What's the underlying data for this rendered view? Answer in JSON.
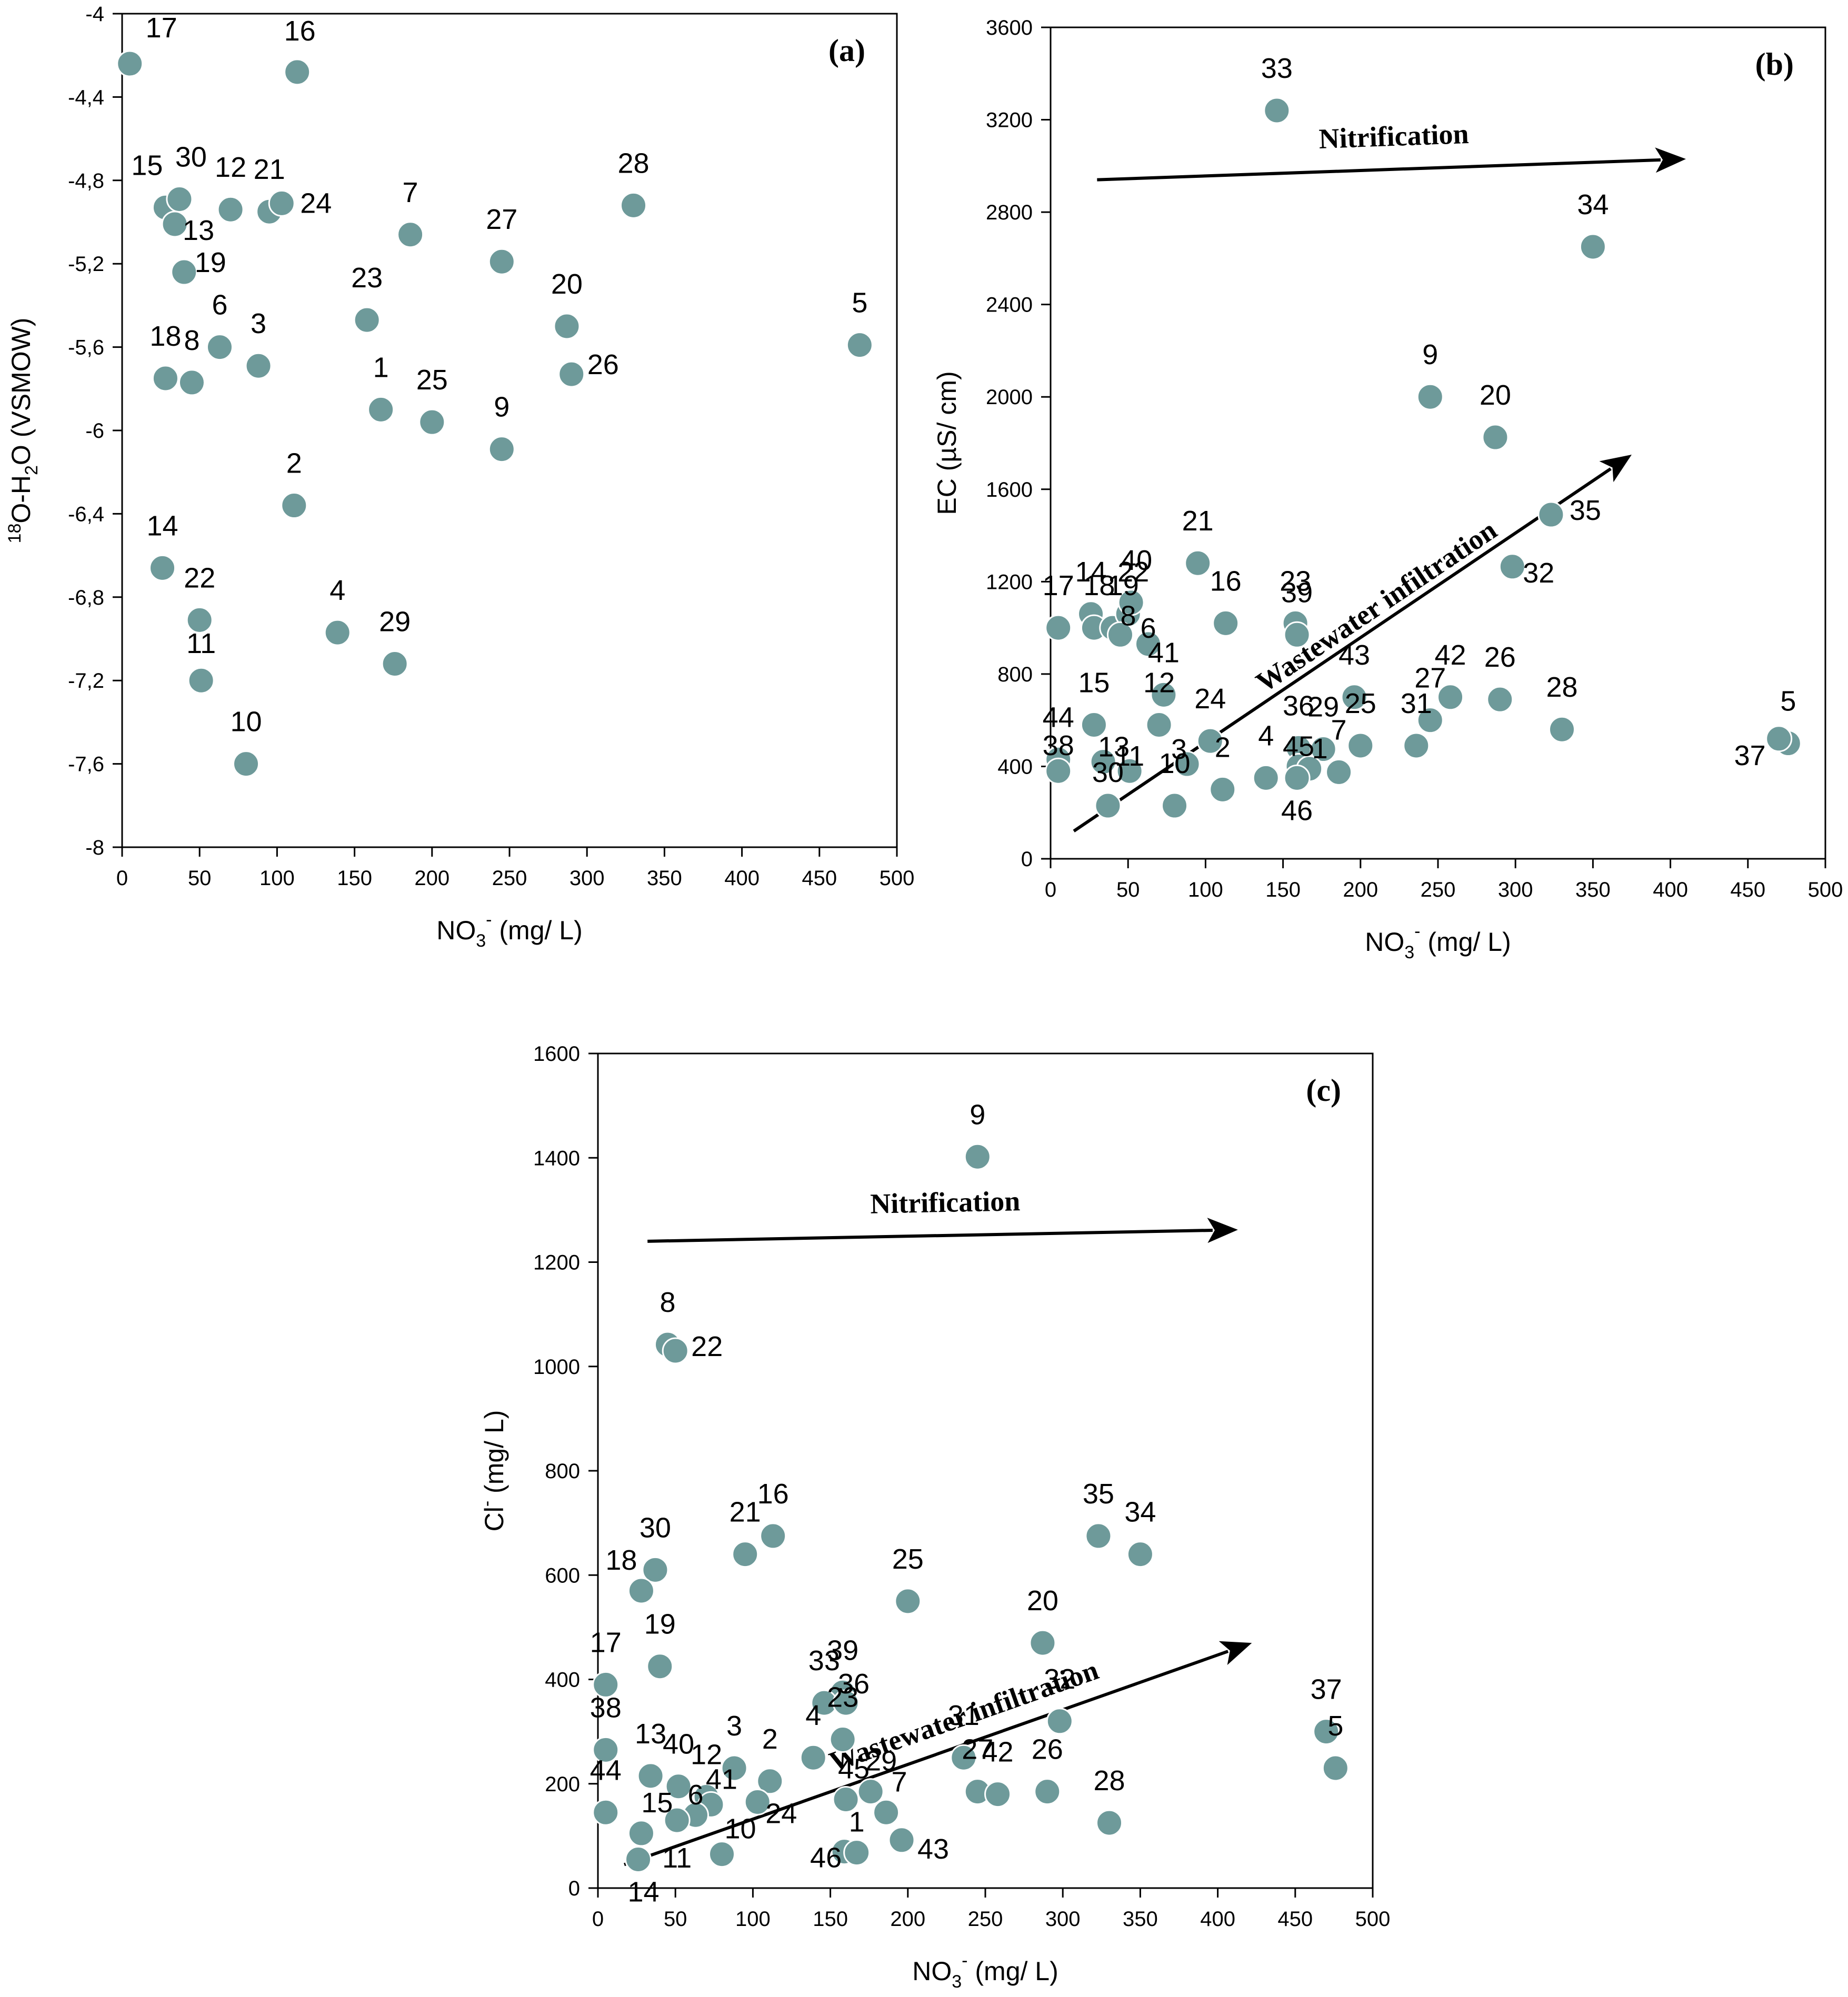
{
  "colors": {
    "point": "#6e9a9a",
    "axis": "#000000",
    "background": "#ffffff"
  },
  "chart_data": [
    {
      "id": "a",
      "type": "scatter",
      "panel_label": "(a)",
      "xlabel": "NO3- (mg/ L)",
      "xlabel_parts": {
        "main": "NO",
        "sub": "3",
        "sup": "-",
        "rest": " (mg/ L)"
      },
      "ylabel": "18O-H2O (VSMOW)",
      "ylabel_parts": {
        "sup": "18",
        "main": "O-H",
        "sub": "2",
        "rest": "O (VSMOW)"
      },
      "xlim": [
        0,
        500
      ],
      "ylim": [
        -8,
        -4
      ],
      "xticks": [
        0,
        50,
        100,
        150,
        200,
        250,
        300,
        350,
        400,
        450,
        500
      ],
      "xtick_labels": [
        "0",
        "50",
        "100",
        "150",
        "200",
        "250",
        "300",
        "350",
        "400",
        "450",
        "500"
      ],
      "yticks": [
        -8,
        -7.6,
        -7.2,
        -6.8,
        -6.4,
        -6,
        -5.6,
        -5.2,
        -4.8,
        -4.4,
        -4
      ],
      "ytick_labels": [
        "-8",
        "-7,6",
        "-7,2",
        "-6,8",
        "-6,4",
        "-6",
        "-5,6",
        "-5,2",
        "-4,8",
        "-4,4",
        "-4"
      ],
      "points": [
        {
          "label": "17",
          "x": 5,
          "y": -4.24
        },
        {
          "label": "16",
          "x": 113,
          "y": -4.28
        },
        {
          "label": "15",
          "x": 28,
          "y": -4.93
        },
        {
          "label": "30",
          "x": 37,
          "y": -4.89
        },
        {
          "label": "13",
          "x": 34,
          "y": -5.01
        },
        {
          "label": "12",
          "x": 70,
          "y": -4.94
        },
        {
          "label": "21",
          "x": 95,
          "y": -4.95
        },
        {
          "label": "24",
          "x": 103,
          "y": -4.91
        },
        {
          "label": "28",
          "x": 330,
          "y": -4.92
        },
        {
          "label": "7",
          "x": 186,
          "y": -5.06
        },
        {
          "label": "27",
          "x": 245,
          "y": -5.19
        },
        {
          "label": "19",
          "x": 40,
          "y": -5.24
        },
        {
          "label": "23",
          "x": 158,
          "y": -5.47
        },
        {
          "label": "20",
          "x": 287,
          "y": -5.5
        },
        {
          "label": "6",
          "x": 63,
          "y": -5.6
        },
        {
          "label": "3",
          "x": 88,
          "y": -5.69
        },
        {
          "label": "26",
          "x": 290,
          "y": -5.73
        },
        {
          "label": "18",
          "x": 28,
          "y": -5.75
        },
        {
          "label": "8",
          "x": 45,
          "y": -5.77
        },
        {
          "label": "5",
          "x": 476,
          "y": -5.59
        },
        {
          "label": "1",
          "x": 167,
          "y": -5.9
        },
        {
          "label": "25",
          "x": 200,
          "y": -5.96
        },
        {
          "label": "9",
          "x": 245,
          "y": -6.09
        },
        {
          "label": "2",
          "x": 111,
          "y": -6.36
        },
        {
          "label": "14",
          "x": 26,
          "y": -6.66
        },
        {
          "label": "22",
          "x": 50,
          "y": -6.91
        },
        {
          "label": "4",
          "x": 139,
          "y": -6.97
        },
        {
          "label": "29",
          "x": 176,
          "y": -7.12
        },
        {
          "label": "11",
          "x": 51,
          "y": -7.2
        },
        {
          "label": "10",
          "x": 80,
          "y": -7.6
        }
      ]
    },
    {
      "id": "b",
      "type": "scatter",
      "panel_label": "(b)",
      "xlabel": "NO3- (mg/ L)",
      "xlabel_parts": {
        "main": "NO",
        "sub": "3",
        "sup": "-",
        "rest": " (mg/ L)"
      },
      "ylabel": "EC (µS/ cm)",
      "xlim": [
        0,
        500
      ],
      "ylim": [
        0,
        3600
      ],
      "xticks": [
        0,
        50,
        100,
        150,
        200,
        250,
        300,
        350,
        400,
        450,
        500
      ],
      "xtick_labels": [
        "0",
        "50",
        "100",
        "150",
        "200",
        "250",
        "300",
        "350",
        "400",
        "450",
        "500"
      ],
      "yticks": [
        0,
        400,
        800,
        1200,
        1600,
        2000,
        2400,
        2800,
        3200,
        3600
      ],
      "ytick_labels": [
        "0",
        "400",
        "800",
        "1200",
        "1600",
        "2000",
        "2400",
        "2800",
        "3200",
        "3600"
      ],
      "annotations": [
        {
          "text": "Nitrification",
          "arrow": {
            "from": [
              30,
              2940
            ],
            "to": [
              410,
              3030
            ]
          }
        },
        {
          "text": "Wastewater infiltration",
          "arrow": {
            "from": [
              15,
              120
            ],
            "to": [
              375,
              1750
            ]
          }
        }
      ],
      "points": [
        {
          "label": "33",
          "x": 146,
          "y": 3240
        },
        {
          "label": "34",
          "x": 350,
          "y": 2650
        },
        {
          "label": "9",
          "x": 245,
          "y": 2000
        },
        {
          "label": "20",
          "x": 287,
          "y": 1825
        },
        {
          "label": "35",
          "x": 323,
          "y": 1490
        },
        {
          "label": "21",
          "x": 95,
          "y": 1280
        },
        {
          "label": "32",
          "x": 298,
          "y": 1265
        },
        {
          "label": "17",
          "x": 5,
          "y": 1000
        },
        {
          "label": "14",
          "x": 26,
          "y": 1060
        },
        {
          "label": "18",
          "x": 28,
          "y": 1000
        },
        {
          "label": "19",
          "x": 40,
          "y": 1000
        },
        {
          "label": "22",
          "x": 50,
          "y": 1060
        },
        {
          "label": "40",
          "x": 52,
          "y": 1110
        },
        {
          "label": "8",
          "x": 45,
          "y": 970
        },
        {
          "label": "6",
          "x": 63,
          "y": 930
        },
        {
          "label": "16",
          "x": 113,
          "y": 1020
        },
        {
          "label": "23",
          "x": 158,
          "y": 1020
        },
        {
          "label": "39",
          "x": 159,
          "y": 970
        },
        {
          "label": "41",
          "x": 73,
          "y": 710
        },
        {
          "label": "43",
          "x": 196,
          "y": 700
        },
        {
          "label": "42",
          "x": 258,
          "y": 700
        },
        {
          "label": "26",
          "x": 290,
          "y": 690
        },
        {
          "label": "27",
          "x": 245,
          "y": 600
        },
        {
          "label": "15",
          "x": 28,
          "y": 580
        },
        {
          "label": "12",
          "x": 70,
          "y": 580
        },
        {
          "label": "24",
          "x": 103,
          "y": 510
        },
        {
          "label": "28",
          "x": 330,
          "y": 560
        },
        {
          "label": "13",
          "x": 34,
          "y": 420
        },
        {
          "label": "44",
          "x": 5,
          "y": 430
        },
        {
          "label": "38",
          "x": 5,
          "y": 380
        },
        {
          "label": "3",
          "x": 88,
          "y": 410
        },
        {
          "label": "36",
          "x": 160,
          "y": 480
        },
        {
          "label": "29",
          "x": 176,
          "y": 475
        },
        {
          "label": "25",
          "x": 200,
          "y": 490
        },
        {
          "label": "31",
          "x": 236,
          "y": 490
        },
        {
          "label": "45",
          "x": 160,
          "y": 400
        },
        {
          "label": "7",
          "x": 186,
          "y": 375
        },
        {
          "label": "1",
          "x": 167,
          "y": 390
        },
        {
          "label": "11",
          "x": 51,
          "y": 380
        },
        {
          "label": "4",
          "x": 139,
          "y": 350
        },
        {
          "label": "2",
          "x": 111,
          "y": 300
        },
        {
          "label": "46",
          "x": 159,
          "y": 350
        },
        {
          "label": "30",
          "x": 37,
          "y": 230
        },
        {
          "label": "10",
          "x": 80,
          "y": 230
        },
        {
          "label": "5",
          "x": 476,
          "y": 500
        },
        {
          "label": "37",
          "x": 470,
          "y": 520
        }
      ]
    },
    {
      "id": "c",
      "type": "scatter",
      "panel_label": "(c)",
      "xlabel": "NO3- (mg/ L)",
      "xlabel_parts": {
        "main": "NO",
        "sub": "3",
        "sup": "-",
        "rest": " (mg/ L)"
      },
      "ylabel": "Cl- (mg/ L)",
      "ylabel_parts": {
        "main": "Cl",
        "sup": "-",
        "rest": " (mg/ L)"
      },
      "xlim": [
        0,
        500
      ],
      "ylim": [
        0,
        1600
      ],
      "xticks": [
        0,
        50,
        100,
        150,
        200,
        250,
        300,
        350,
        400,
        450,
        500
      ],
      "xtick_labels": [
        "0",
        "50",
        "100",
        "150",
        "200",
        "250",
        "300",
        "350",
        "400",
        "450",
        "500"
      ],
      "yticks": [
        0,
        200,
        400,
        600,
        800,
        1000,
        1200,
        1400,
        1600
      ],
      "ytick_labels": [
        "0",
        "200",
        "400",
        "600",
        "800",
        "1000",
        "1200",
        "1400",
        "1600"
      ],
      "annotations": [
        {
          "text": "Nitrification",
          "arrow": {
            "from": [
              32,
              1240
            ],
            "to": [
              413,
              1262
            ]
          }
        },
        {
          "text": "Wastewater infiltration",
          "arrow": {
            "from": [
              17,
              45
            ],
            "to": [
              422,
              470
            ]
          }
        }
      ],
      "points": [
        {
          "label": "9",
          "x": 245,
          "y": 1402
        },
        {
          "label": "8",
          "x": 45,
          "y": 1042
        },
        {
          "label": "22",
          "x": 50,
          "y": 1030
        },
        {
          "label": "16",
          "x": 113,
          "y": 675
        },
        {
          "label": "21",
          "x": 95,
          "y": 640
        },
        {
          "label": "35",
          "x": 323,
          "y": 675
        },
        {
          "label": "34",
          "x": 350,
          "y": 640
        },
        {
          "label": "30",
          "x": 37,
          "y": 610
        },
        {
          "label": "18",
          "x": 28,
          "y": 570
        },
        {
          "label": "25",
          "x": 200,
          "y": 550
        },
        {
          "label": "20",
          "x": 287,
          "y": 470
        },
        {
          "label": "19",
          "x": 40,
          "y": 425
        },
        {
          "label": "17",
          "x": 5,
          "y": 390
        },
        {
          "label": "39",
          "x": 158,
          "y": 375
        },
        {
          "label": "33",
          "x": 146,
          "y": 355
        },
        {
          "label": "36",
          "x": 160,
          "y": 355
        },
        {
          "label": "32",
          "x": 298,
          "y": 320
        },
        {
          "label": "37",
          "x": 470,
          "y": 300
        },
        {
          "label": "23",
          "x": 158,
          "y": 285
        },
        {
          "label": "38",
          "x": 5,
          "y": 265
        },
        {
          "label": "5",
          "x": 476,
          "y": 230
        },
        {
          "label": "3",
          "x": 88,
          "y": 230
        },
        {
          "label": "13",
          "x": 34,
          "y": 215
        },
        {
          "label": "2",
          "x": 111,
          "y": 205
        },
        {
          "label": "40",
          "x": 52,
          "y": 195
        },
        {
          "label": "4",
          "x": 139,
          "y": 250
        },
        {
          "label": "31",
          "x": 236,
          "y": 250
        },
        {
          "label": "12",
          "x": 70,
          "y": 175
        },
        {
          "label": "41",
          "x": 73,
          "y": 160
        },
        {
          "label": "45",
          "x": 160,
          "y": 170
        },
        {
          "label": "29",
          "x": 176,
          "y": 185
        },
        {
          "label": "27",
          "x": 245,
          "y": 185
        },
        {
          "label": "42",
          "x": 258,
          "y": 180
        },
        {
          "label": "26",
          "x": 290,
          "y": 185
        },
        {
          "label": "44",
          "x": 5,
          "y": 145
        },
        {
          "label": "6",
          "x": 63,
          "y": 140
        },
        {
          "label": "24",
          "x": 103,
          "y": 165
        },
        {
          "label": "7",
          "x": 186,
          "y": 145
        },
        {
          "label": "28",
          "x": 330,
          "y": 125
        },
        {
          "label": "15",
          "x": 28,
          "y": 105
        },
        {
          "label": "11",
          "x": 51,
          "y": 130
        },
        {
          "label": "43",
          "x": 196,
          "y": 92
        },
        {
          "label": "14",
          "x": 26,
          "y": 55
        },
        {
          "label": "10",
          "x": 80,
          "y": 65
        },
        {
          "label": "46",
          "x": 159,
          "y": 70
        },
        {
          "label": "1",
          "x": 167,
          "y": 68
        }
      ]
    }
  ]
}
